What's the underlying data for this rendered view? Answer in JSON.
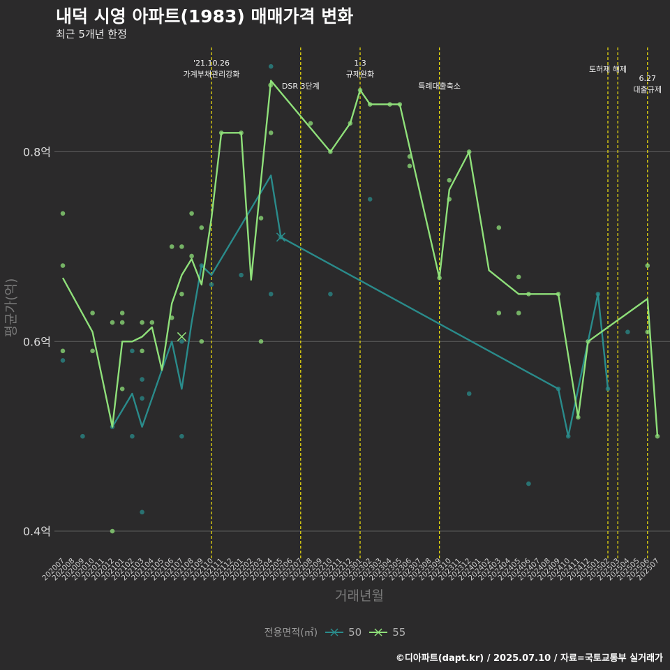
{
  "title": "내덕 시영 아파트(1983) 매매가격 변화",
  "subtitle": "최근 5개년 한정",
  "caption": "©디아파트(dapt.kr) / 2025.07.10 / 자료=국토교통부 실거래가",
  "colors": {
    "background": "#2b2a2b",
    "grid": "#5e5e5e",
    "event_line": "#e6d80f",
    "series_50": "#2a8b8b",
    "series_55": "#8fe07a"
  },
  "chart_data": {
    "type": "line",
    "xlabel": "거래년월",
    "ylabel": "평균가(억)",
    "ylim": [
      0.375,
      0.91
    ],
    "y_ticks": [
      0.4,
      0.6,
      0.8
    ],
    "y_tick_labels": [
      "0.4억",
      "0.6억",
      "0.8억"
    ],
    "categories": [
      "202007",
      "202008",
      "202009",
      "202010",
      "202011",
      "202012",
      "202101",
      "202102",
      "202103",
      "202104",
      "202105",
      "202106",
      "202107",
      "202108",
      "202109",
      "202110",
      "202111",
      "202112",
      "202201",
      "202202",
      "202203",
      "202204",
      "202205",
      "202206",
      "202207",
      "202208",
      "202209",
      "202210",
      "202211",
      "202212",
      "202301",
      "202302",
      "202303",
      "202304",
      "202305",
      "202306",
      "202307",
      "202308",
      "202309",
      "202310",
      "202311",
      "202312",
      "202401",
      "202402",
      "202403",
      "202404",
      "202405",
      "202406",
      "202407",
      "202408",
      "202409",
      "202410",
      "202411",
      "202412",
      "202501",
      "202502",
      "202503",
      "202504",
      "202505",
      "202506",
      "202507"
    ],
    "legend_title": "전용면적(㎡)",
    "series": [
      {
        "name": "50",
        "points": [
          [
            "202012",
            0.51
          ],
          [
            "202102",
            0.545
          ],
          [
            "202103",
            0.51
          ],
          [
            "202106",
            0.6
          ],
          [
            "202107",
            0.55
          ],
          [
            "202108",
            0.62
          ],
          [
            "202109",
            0.68
          ],
          [
            "202110",
            0.67
          ],
          [
            "202204",
            0.775
          ],
          [
            "202205",
            0.71
          ],
          [
            "202409",
            0.55
          ],
          [
            "202410",
            0.5
          ],
          [
            "202411",
            0.55
          ],
          [
            "202412",
            0.6
          ],
          [
            "202501",
            0.65
          ],
          [
            "202502",
            0.55
          ]
        ]
      },
      {
        "name": "55",
        "points": [
          [
            "202007",
            0.667
          ],
          [
            "202010",
            0.61
          ],
          [
            "202012",
            0.51
          ],
          [
            "202101",
            0.6
          ],
          [
            "202102",
            0.6
          ],
          [
            "202103",
            0.605
          ],
          [
            "202104",
            0.615
          ],
          [
            "202105",
            0.57
          ],
          [
            "202106",
            0.64
          ],
          [
            "202107",
            0.67
          ],
          [
            "202108",
            0.687
          ],
          [
            "202109",
            0.66
          ],
          [
            "202110",
            0.73
          ],
          [
            "202111",
            0.82
          ],
          [
            "202201",
            0.82
          ],
          [
            "202202",
            0.665
          ],
          [
            "202204",
            0.875
          ],
          [
            "202210",
            0.8
          ],
          [
            "202212",
            0.83
          ],
          [
            "202301",
            0.865
          ],
          [
            "202302",
            0.85
          ],
          [
            "202304",
            0.85
          ],
          [
            "202305",
            0.85
          ],
          [
            "202309",
            0.667
          ],
          [
            "202310",
            0.76
          ],
          [
            "202312",
            0.8
          ],
          [
            "202402",
            0.675
          ],
          [
            "202405",
            0.65
          ],
          [
            "202406",
            0.65
          ],
          [
            "202409",
            0.65
          ],
          [
            "202411",
            0.52
          ],
          [
            "202412",
            0.6
          ],
          [
            "202506",
            0.645
          ],
          [
            "202507",
            0.5
          ]
        ]
      }
    ],
    "scatter": [
      {
        "series": "55",
        "points": [
          [
            "202007",
            0.735
          ],
          [
            "202007",
            0.68
          ],
          [
            "202007",
            0.59
          ],
          [
            "202010",
            0.63
          ],
          [
            "202010",
            0.59
          ],
          [
            "202012",
            0.4
          ],
          [
            "202012",
            0.62
          ],
          [
            "202101",
            0.63
          ],
          [
            "202101",
            0.62
          ],
          [
            "202101",
            0.55
          ],
          [
            "202103",
            0.62
          ],
          [
            "202103",
            0.59
          ],
          [
            "202104",
            0.62
          ],
          [
            "202106",
            0.7
          ],
          [
            "202106",
            0.625
          ],
          [
            "202107",
            0.7
          ],
          [
            "202107",
            0.65
          ],
          [
            "202108",
            0.735
          ],
          [
            "202108",
            0.69
          ],
          [
            "202109",
            0.72
          ],
          [
            "202109",
            0.6
          ],
          [
            "202111",
            0.82
          ],
          [
            "202201",
            0.82
          ],
          [
            "202203",
            0.73
          ],
          [
            "202203",
            0.6
          ],
          [
            "202204",
            0.82
          ],
          [
            "202208",
            0.83
          ],
          [
            "202210",
            0.8
          ],
          [
            "202212",
            0.83
          ],
          [
            "202301",
            0.865
          ],
          [
            "202302",
            0.85
          ],
          [
            "202304",
            0.85
          ],
          [
            "202305",
            0.85
          ],
          [
            "202306",
            0.795
          ],
          [
            "202306",
            0.785
          ],
          [
            "202309",
            0.667
          ],
          [
            "202310",
            0.77
          ],
          [
            "202310",
            0.75
          ],
          [
            "202312",
            0.8
          ],
          [
            "202403",
            0.72
          ],
          [
            "202403",
            0.63
          ],
          [
            "202405",
            0.668
          ],
          [
            "202405",
            0.63
          ],
          [
            "202406",
            0.65
          ],
          [
            "202409",
            0.65
          ],
          [
            "202411",
            0.52
          ],
          [
            "202412",
            0.6
          ],
          [
            "202506",
            0.68
          ],
          [
            "202506",
            0.61
          ],
          [
            "202507",
            0.5
          ]
        ]
      },
      {
        "series": "50",
        "points": [
          [
            "202007",
            0.58
          ],
          [
            "202009",
            0.5
          ],
          [
            "202012",
            0.51
          ],
          [
            "202102",
            0.59
          ],
          [
            "202102",
            0.5
          ],
          [
            "202103",
            0.56
          ],
          [
            "202103",
            0.54
          ],
          [
            "202103",
            0.42
          ],
          [
            "202107",
            0.6
          ],
          [
            "202107",
            0.5
          ],
          [
            "202109",
            0.68
          ],
          [
            "202110",
            0.66
          ],
          [
            "202201",
            0.67
          ],
          [
            "202204",
            0.65
          ],
          [
            "202204",
            0.89
          ],
          [
            "202205",
            0.71
          ],
          [
            "202210",
            0.65
          ],
          [
            "202302",
            0.75
          ],
          [
            "202312",
            0.545
          ],
          [
            "202406",
            0.45
          ],
          [
            "202409",
            0.55
          ],
          [
            "202410",
            0.5
          ],
          [
            "202501",
            0.65
          ],
          [
            "202502",
            0.55
          ],
          [
            "202504",
            0.61
          ]
        ]
      }
    ],
    "markers": [
      {
        "series": "55",
        "at": [
          "202107",
          0.605
        ]
      },
      {
        "series": "50",
        "at": [
          "202205",
          0.71
        ]
      }
    ],
    "event_lines": [
      {
        "at": "202110",
        "lines": [
          "'21.10.26",
          "가계부채관리강화"
        ]
      },
      {
        "at": "202207",
        "lines": [
          "DSR 3단계"
        ]
      },
      {
        "at": "202301",
        "lines": [
          "1.3",
          "규제완화"
        ]
      },
      {
        "at": "202309",
        "lines": [
          "특례대출축소"
        ]
      },
      {
        "at": "202502",
        "lines": [
          "토허제 해제"
        ]
      },
      {
        "at": "202503",
        "lines": []
      },
      {
        "at": "202506",
        "lines": [
          "6.27",
          "대출규제"
        ]
      }
    ],
    "legend_dot_label": "DSR 3단계"
  }
}
